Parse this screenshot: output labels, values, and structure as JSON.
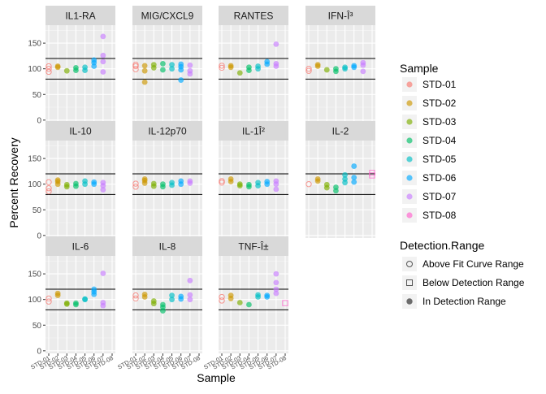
{
  "chart_data": {
    "type": "scatter",
    "facet": "multiplex-cytokine",
    "title": "",
    "xlabel": "Sample",
    "ylabel": "Percent Recovery",
    "ylim": [
      -5,
      185
    ],
    "y_ticks": [
      0,
      50,
      100,
      150
    ],
    "reference_lines": [
      80,
      120
    ],
    "grid": true,
    "x_tick_labels": [
      "STD-01",
      "STD-02",
      "STD-03",
      "STD-04",
      "STD-05",
      "STD-06",
      "STD-07",
      "STD-08"
    ],
    "legend_position": "right",
    "sample_legend": {
      "title": "Sample",
      "items": [
        {
          "name": "STD-01",
          "color": "#F8766D"
        },
        {
          "name": "STD-02",
          "color": "#CD9600"
        },
        {
          "name": "STD-03",
          "color": "#7CAE00"
        },
        {
          "name": "STD-04",
          "color": "#00BE67"
        },
        {
          "name": "STD-05",
          "color": "#00BFC4"
        },
        {
          "name": "STD-06",
          "color": "#00A9FF"
        },
        {
          "name": "STD-07",
          "color": "#C77CFF"
        },
        {
          "name": "STD-08",
          "color": "#FF61CC"
        }
      ]
    },
    "range_legend": {
      "title": "Detection.Range",
      "items": [
        {
          "name": "Above Fit Curve Range",
          "shape": "open-circle"
        },
        {
          "name": "Below Detection Range",
          "shape": "open-square"
        },
        {
          "name": "In Detection Range",
          "shape": "filled-circle"
        }
      ]
    },
    "panels": [
      {
        "name": "IL1-RA",
        "points": [
          [
            1,
            94,
            "above"
          ],
          [
            1,
            100,
            "above"
          ],
          [
            1,
            105,
            "above"
          ],
          [
            2,
            103,
            "in"
          ],
          [
            2,
            105,
            "in"
          ],
          [
            3,
            96,
            "in"
          ],
          [
            4,
            97,
            "in"
          ],
          [
            4,
            102,
            "in"
          ],
          [
            5,
            97,
            "in"
          ],
          [
            5,
            103,
            "in"
          ],
          [
            6,
            105,
            "in"
          ],
          [
            6,
            112,
            "in"
          ],
          [
            6,
            117,
            "in"
          ],
          [
            7,
            94,
            "in"
          ],
          [
            7,
            114,
            "in"
          ],
          [
            7,
            126,
            "in"
          ],
          [
            7,
            163,
            "in"
          ]
        ]
      },
      {
        "name": "MIG/CXCL9",
        "points": [
          [
            1,
            99,
            "above"
          ],
          [
            1,
            105,
            "above"
          ],
          [
            1,
            108,
            "above"
          ],
          [
            2,
            74,
            "in"
          ],
          [
            2,
            96,
            "in"
          ],
          [
            2,
            106,
            "in"
          ],
          [
            3,
            102,
            "in"
          ],
          [
            3,
            108,
            "in"
          ],
          [
            4,
            98,
            "in"
          ],
          [
            4,
            110,
            "in"
          ],
          [
            5,
            100,
            "in"
          ],
          [
            5,
            108,
            "in"
          ],
          [
            6,
            78,
            "in"
          ],
          [
            6,
            98,
            "in"
          ],
          [
            6,
            104,
            "in"
          ],
          [
            6,
            109,
            "in"
          ],
          [
            7,
            90,
            "in"
          ],
          [
            7,
            96,
            "in"
          ],
          [
            7,
            107,
            "in"
          ]
        ]
      },
      {
        "name": "RANTES",
        "points": [
          [
            1,
            102,
            "above"
          ],
          [
            1,
            106,
            "above"
          ],
          [
            2,
            103,
            "in"
          ],
          [
            2,
            106,
            "in"
          ],
          [
            3,
            92,
            "in"
          ],
          [
            4,
            97,
            "in"
          ],
          [
            4,
            103,
            "in"
          ],
          [
            5,
            100,
            "in"
          ],
          [
            5,
            105,
            "in"
          ],
          [
            6,
            109,
            "in"
          ],
          [
            6,
            114,
            "in"
          ],
          [
            7,
            105,
            "in"
          ],
          [
            7,
            110,
            "in"
          ],
          [
            7,
            148,
            "in"
          ]
        ]
      },
      {
        "name": "IFN-Î³",
        "points": [
          [
            1,
            96,
            "above"
          ],
          [
            1,
            100,
            "above"
          ],
          [
            2,
            105,
            "in"
          ],
          [
            2,
            108,
            "in"
          ],
          [
            3,
            98,
            "in"
          ],
          [
            4,
            95,
            "in"
          ],
          [
            4,
            100,
            "in"
          ],
          [
            5,
            100,
            "in"
          ],
          [
            5,
            103,
            "in"
          ],
          [
            6,
            103,
            "in"
          ],
          [
            6,
            106,
            "in"
          ],
          [
            7,
            95,
            "in"
          ],
          [
            7,
            107,
            "in"
          ],
          [
            7,
            112,
            "in"
          ]
        ]
      },
      {
        "name": "IL-10",
        "points": [
          [
            1,
            86,
            "above"
          ],
          [
            1,
            92,
            "above"
          ],
          [
            1,
            104,
            "above"
          ],
          [
            2,
            100,
            "in"
          ],
          [
            2,
            105,
            "in"
          ],
          [
            2,
            108,
            "in"
          ],
          [
            3,
            95,
            "in"
          ],
          [
            3,
            99,
            "in"
          ],
          [
            4,
            96,
            "in"
          ],
          [
            4,
            101,
            "in"
          ],
          [
            5,
            100,
            "in"
          ],
          [
            5,
            106,
            "in"
          ],
          [
            6,
            100,
            "in"
          ],
          [
            6,
            104,
            "in"
          ],
          [
            7,
            89,
            "in"
          ],
          [
            7,
            97,
            "in"
          ],
          [
            7,
            103,
            "in"
          ]
        ]
      },
      {
        "name": "IL-12p70",
        "points": [
          [
            1,
            95,
            "above"
          ],
          [
            1,
            101,
            "above"
          ],
          [
            2,
            102,
            "in"
          ],
          [
            2,
            107,
            "in"
          ],
          [
            2,
            110,
            "in"
          ],
          [
            3,
            96,
            "in"
          ],
          [
            3,
            101,
            "in"
          ],
          [
            4,
            95,
            "in"
          ],
          [
            4,
            100,
            "in"
          ],
          [
            5,
            98,
            "in"
          ],
          [
            5,
            103,
            "in"
          ],
          [
            6,
            100,
            "in"
          ],
          [
            6,
            106,
            "in"
          ],
          [
            7,
            102,
            "in"
          ],
          [
            7,
            106,
            "in"
          ]
        ]
      },
      {
        "name": "IL-1Î²",
        "points": [
          [
            1,
            103,
            "above"
          ],
          [
            1,
            106,
            "above"
          ],
          [
            2,
            105,
            "in"
          ],
          [
            2,
            110,
            "in"
          ],
          [
            3,
            97,
            "in"
          ],
          [
            3,
            100,
            "in"
          ],
          [
            4,
            95,
            "in"
          ],
          [
            4,
            99,
            "in"
          ],
          [
            5,
            97,
            "in"
          ],
          [
            5,
            103,
            "in"
          ],
          [
            6,
            100,
            "in"
          ],
          [
            6,
            105,
            "in"
          ],
          [
            7,
            90,
            "in"
          ],
          [
            7,
            100,
            "in"
          ],
          [
            7,
            106,
            "in"
          ]
        ]
      },
      {
        "name": "IL-2",
        "points": [
          [
            1,
            100,
            "above"
          ],
          [
            2,
            106,
            "in"
          ],
          [
            2,
            110,
            "in"
          ],
          [
            3,
            93,
            "in"
          ],
          [
            3,
            99,
            "in"
          ],
          [
            4,
            87,
            "in"
          ],
          [
            4,
            94,
            "in"
          ],
          [
            5,
            103,
            "in"
          ],
          [
            5,
            110,
            "in"
          ],
          [
            5,
            118,
            "in"
          ],
          [
            6,
            104,
            "in"
          ],
          [
            6,
            113,
            "in"
          ],
          [
            6,
            135,
            "in"
          ],
          [
            8,
            117,
            "below"
          ],
          [
            8,
            122,
            "below"
          ]
        ]
      },
      {
        "name": "IL-6",
        "points": [
          [
            1,
            96,
            "above"
          ],
          [
            1,
            102,
            "above"
          ],
          [
            2,
            108,
            "in"
          ],
          [
            2,
            112,
            "in"
          ],
          [
            3,
            91,
            "in"
          ],
          [
            3,
            93,
            "in"
          ],
          [
            4,
            90,
            "in"
          ],
          [
            4,
            93,
            "in"
          ],
          [
            5,
            100,
            "in"
          ],
          [
            5,
            101,
            "in"
          ],
          [
            6,
            110,
            "in"
          ],
          [
            6,
            115,
            "in"
          ],
          [
            6,
            120,
            "in"
          ],
          [
            7,
            88,
            "in"
          ],
          [
            7,
            94,
            "in"
          ],
          [
            7,
            151,
            "in"
          ]
        ]
      },
      {
        "name": "IL-8",
        "points": [
          [
            1,
            102,
            "above"
          ],
          [
            1,
            108,
            "above"
          ],
          [
            2,
            105,
            "in"
          ],
          [
            2,
            110,
            "in"
          ],
          [
            3,
            92,
            "in"
          ],
          [
            3,
            97,
            "in"
          ],
          [
            4,
            78,
            "in"
          ],
          [
            4,
            85,
            "in"
          ],
          [
            4,
            90,
            "in"
          ],
          [
            5,
            100,
            "in"
          ],
          [
            5,
            108,
            "in"
          ],
          [
            6,
            101,
            "in"
          ],
          [
            6,
            106,
            "in"
          ],
          [
            7,
            100,
            "in"
          ],
          [
            7,
            109,
            "in"
          ],
          [
            7,
            137,
            "in"
          ]
        ]
      },
      {
        "name": "TNF-Î±",
        "points": [
          [
            1,
            98,
            "above"
          ],
          [
            1,
            105,
            "above"
          ],
          [
            2,
            102,
            "in"
          ],
          [
            2,
            108,
            "in"
          ],
          [
            3,
            94,
            "in"
          ],
          [
            4,
            90,
            "in"
          ],
          [
            5,
            105,
            "in"
          ],
          [
            5,
            109,
            "in"
          ],
          [
            6,
            105,
            "in"
          ],
          [
            6,
            108,
            "in"
          ],
          [
            7,
            112,
            "in"
          ],
          [
            7,
            120,
            "in"
          ],
          [
            7,
            133,
            "in"
          ],
          [
            7,
            150,
            "in"
          ],
          [
            8,
            93,
            "below"
          ]
        ]
      }
    ]
  }
}
